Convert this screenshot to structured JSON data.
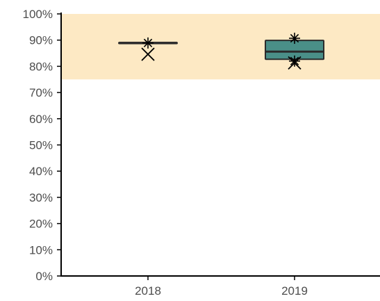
{
  "chart_data": {
    "type": "boxplot",
    "title": "",
    "xlabel": "",
    "ylabel": "",
    "categories": [
      "2018",
      "2019"
    ],
    "ylim": [
      0,
      1
    ],
    "y_ticks": [
      {
        "value": 0.0,
        "label": "0%"
      },
      {
        "value": 0.1,
        "label": "10%"
      },
      {
        "value": 0.2,
        "label": "20%"
      },
      {
        "value": 0.3,
        "label": "30%"
      },
      {
        "value": 0.4,
        "label": "40%"
      },
      {
        "value": 0.5,
        "label": "50%"
      },
      {
        "value": 0.6,
        "label": "60%"
      },
      {
        "value": 0.7,
        "label": "70%"
      },
      {
        "value": 0.8,
        "label": "80%"
      },
      {
        "value": 0.9,
        "label": "90%"
      },
      {
        "value": 1.0,
        "label": "100%"
      }
    ],
    "target_band": {
      "from": 0.75,
      "to": 1.0,
      "color": "#fde9c4"
    },
    "boxes": [
      {
        "category": "2018",
        "q1": 0.887,
        "median": 0.889,
        "q3": 0.891,
        "whisker_low": 0.887,
        "whisker_high": 0.891,
        "fill": "#5b9a95"
      },
      {
        "category": "2019",
        "q1": 0.827,
        "median": 0.856,
        "q3": 0.899,
        "whisker_low": 0.812,
        "whisker_high": 0.907,
        "fill": "#4a8f88"
      }
    ],
    "points": [
      {
        "category": "2018",
        "value": 0.889,
        "marker": "asterisk"
      },
      {
        "category": "2018",
        "value": 0.846,
        "marker": "x"
      },
      {
        "category": "2019",
        "value": 0.907,
        "marker": "asterisk"
      },
      {
        "category": "2019",
        "value": 0.82,
        "marker": "asterisk"
      },
      {
        "category": "2019",
        "value": 0.813,
        "marker": "x"
      }
    ],
    "grid": false,
    "legend": "none"
  }
}
